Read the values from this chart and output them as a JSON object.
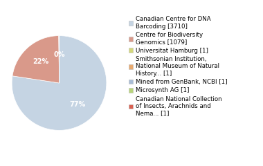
{
  "labels": [
    "Canadian Centre for DNA\nBarcoding [3710]",
    "Centre for Biodiversity\nGenomics [1079]",
    "Universitat Hamburg [1]",
    "Smithsonian Institution,\nNational Museum of Natural\nHistory... [1]",
    "Mined from GenBank, NCBI [1]",
    "Microsynth AG [1]",
    "Canadian National Collection\nof Insects, Arachnids and\nNema... [1]"
  ],
  "values": [
    3710,
    1079,
    1,
    1,
    1,
    1,
    1
  ],
  "colors": [
    "#c5d4e3",
    "#d9998a",
    "#d4d87c",
    "#e8a96e",
    "#a8bcd6",
    "#b8d47c",
    "#d96050"
  ],
  "autopct_labels": [
    "77%",
    "22%",
    "",
    "",
    "",
    "",
    "0%"
  ],
  "background_color": "#ffffff",
  "text_color": "#ffffff",
  "fontsize": 7.0,
  "legend_fontsize": 6.2
}
